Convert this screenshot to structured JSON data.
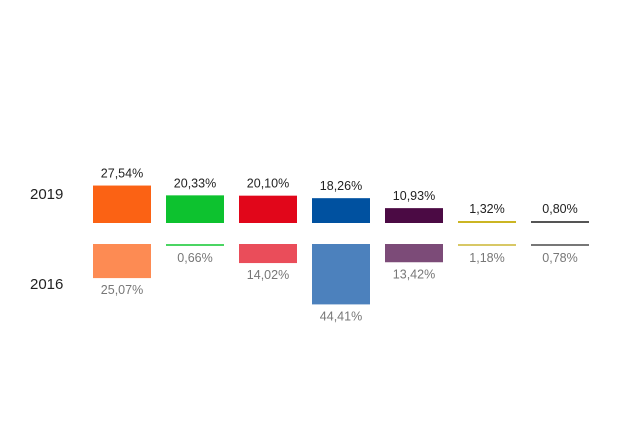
{
  "chart_data": {
    "type": "bar",
    "series": [
      {
        "name": "2019",
        "values": [
          27.54,
          20.33,
          20.1,
          18.26,
          10.93,
          1.32,
          0.8
        ],
        "labels": [
          "27,54%",
          "20,33%",
          "20,10%",
          "18,26%",
          "10,93%",
          "1,32%",
          "0,80%"
        ],
        "colors": [
          "#fb6214",
          "#0dc22f",
          "#e1061a",
          "#0051a0",
          "#4b0a44",
          "#cbb523",
          "#555555"
        ]
      },
      {
        "name": "2016",
        "values": [
          25.07,
          0.66,
          14.02,
          44.41,
          13.42,
          1.18,
          0.78
        ],
        "labels": [
          "25,07%",
          "0,66%",
          "14,02%",
          "44,41%",
          "13,42%",
          "1,18%",
          "0,78%"
        ],
        "colors": [
          "#fd8b53",
          "#4bd563",
          "#ea4d5a",
          "#4c81bd",
          "#7c4b78",
          "#d8c866",
          "#777777"
        ]
      }
    ]
  }
}
